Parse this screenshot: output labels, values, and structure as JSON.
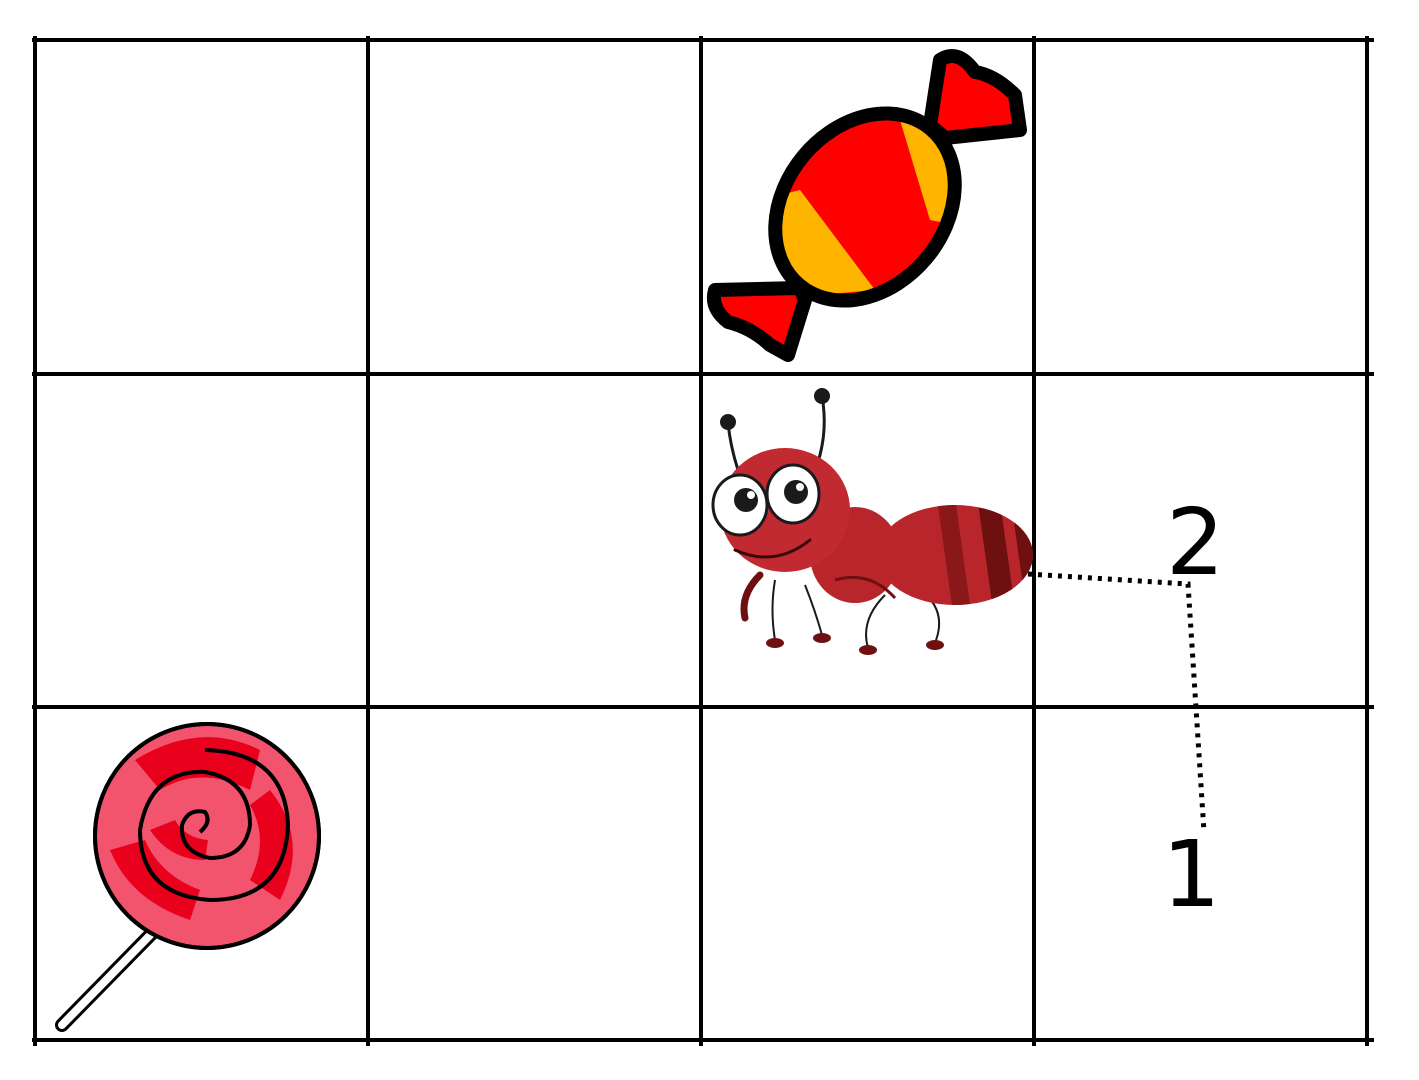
{
  "grid": {
    "rows": 3,
    "columns": 4,
    "line_color": "#000000"
  },
  "items": {
    "candy": {
      "icon": "wrapped-candy-icon",
      "row": 1,
      "column": 3
    },
    "ant": {
      "icon": "ant-icon",
      "row": 2,
      "column": 3
    },
    "lollipop": {
      "icon": "lollipop-icon",
      "row": 3,
      "column": 1
    }
  },
  "path_labels": {
    "one": "1",
    "two": "2"
  },
  "colors": {
    "candy_red": "#ff0000",
    "candy_yellow": "#ffb400",
    "ant_body": "#b8262c",
    "ant_dark": "#6e1010",
    "lollipop_pink": "#f2546e",
    "lollipop_red": "#e8001c"
  }
}
